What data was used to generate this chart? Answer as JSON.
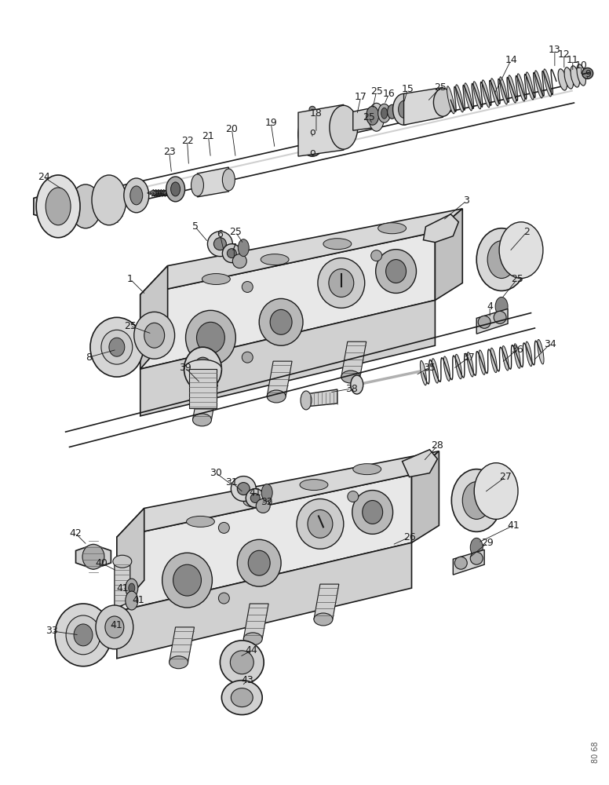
{
  "background_color": "#ffffff",
  "figure_width": 7.76,
  "figure_height": 10.0,
  "watermark": "80 68",
  "line_color": "#1a1a1a",
  "body_face_color": "#e8e8e8",
  "body_top_color": "#d8d8d8",
  "body_right_color": "#c8c8c8",
  "part_gray": "#cccccc",
  "dark_gray": "#888888",
  "mid_gray": "#aaaaaa"
}
